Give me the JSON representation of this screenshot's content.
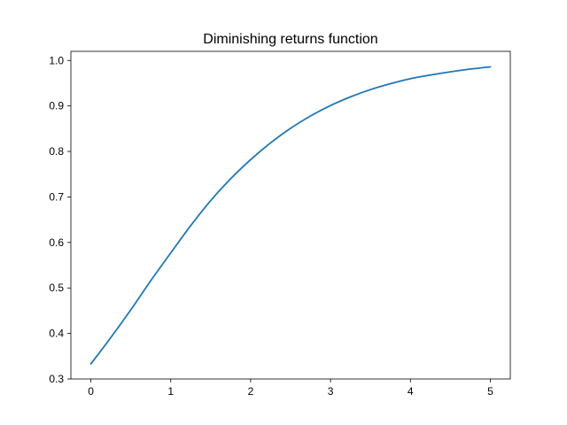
{
  "chart_data": {
    "type": "line",
    "title": "Diminishing returns function",
    "xlabel": "",
    "ylabel": "",
    "xlim": [
      -0.25,
      5.25
    ],
    "ylim": [
      0.3,
      1.02
    ],
    "x_ticks": [
      0,
      1,
      2,
      3,
      4,
      5
    ],
    "x_tick_labels": [
      "0",
      "1",
      "2",
      "3",
      "4",
      "5"
    ],
    "y_ticks": [
      0.3,
      0.4,
      0.5,
      0.6,
      0.7,
      0.8,
      0.9,
      1.0
    ],
    "y_tick_labels": [
      "0.3",
      "0.4",
      "0.5",
      "0.6",
      "0.7",
      "0.8",
      "0.9",
      "1.0"
    ],
    "grid": false,
    "legend": "none",
    "series": [
      {
        "color": "#1f77b4",
        "x": [
          0,
          0.25,
          0.5,
          0.75,
          1.0,
          1.25,
          1.5,
          1.75,
          2.0,
          2.25,
          2.5,
          2.75,
          3.0,
          3.25,
          3.5,
          3.75,
          4.0,
          4.25,
          4.5,
          4.75,
          5.0
        ],
        "y": [
          0.333,
          0.391,
          0.452,
          0.516,
          0.577,
          0.637,
          0.692,
          0.74,
          0.782,
          0.819,
          0.851,
          0.878,
          0.901,
          0.92,
          0.936,
          0.949,
          0.96,
          0.968,
          0.975,
          0.981,
          0.986
        ]
      }
    ]
  }
}
